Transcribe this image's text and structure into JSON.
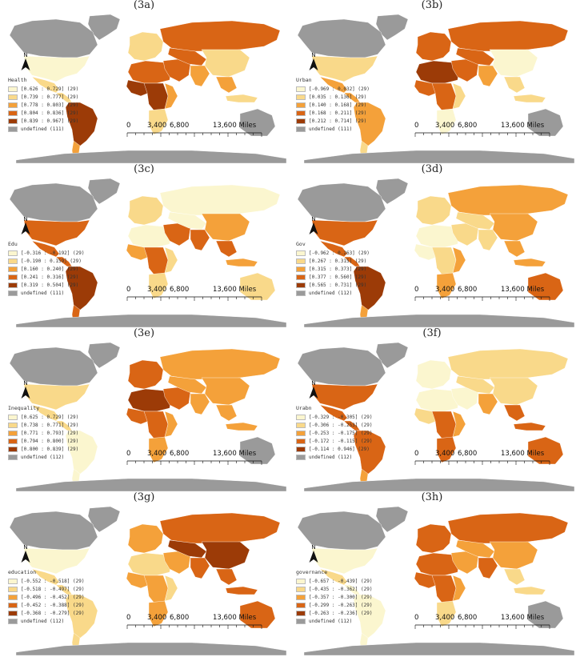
{
  "scale_labels": [
    "0",
    "3,400",
    "6,800",
    "13,600 Miles"
  ],
  "north_label": "N",
  "colors": {
    "c1": "#fbf6cf",
    "c2": "#f9d98a",
    "c3": "#f4a13a",
    "c4": "#d96515",
    "c5": "#9c3b07",
    "undefined": "#9a9a9a",
    "ocean": "#ffffff"
  },
  "panels": [
    {
      "id": "3a",
      "title": "(3a)",
      "legend_title": "Health",
      "classes": [
        "[0.626 : 0.729] (29)",
        "[0.739 : 0.777] (29)",
        "[0.778 : 0.803] (29)",
        "[0.804 : 0.836] (29)",
        "[0.839 : 0.967] (29)"
      ],
      "undefined": "undefined (111)"
    },
    {
      "id": "3b",
      "title": "(3b)",
      "legend_title": "Urban",
      "classes": [
        "[-0.969 : 0.032] (29)",
        "[0.035 : 0.136] (29)",
        "[0.140 : 0.168] (29)",
        "[0.168 : 0.211] (29)",
        "[0.212 : 0.714] (29)"
      ],
      "undefined": "undefined (111)"
    },
    {
      "id": "3c",
      "title": "(3c)",
      "legend_title": "Edu",
      "classes": [
        "[-0.316 : -0.192] (29)",
        "[-0.190 : 0.159] (29)",
        "[0.160 : 0.240] (29)",
        "[0.241 : 0.316] (29)",
        "[0.319 : 0.504] (29)"
      ],
      "undefined": "undefined (111)"
    },
    {
      "id": "3d",
      "title": "(3d)",
      "legend_title": "Gov",
      "classes": [
        "[-0.962 : 0.263] (29)",
        "[0.267 : 0.315] (29)",
        "[0.315 : 0.373] (29)",
        "[0.377 : 0.560] (29)",
        "[0.565 : 0.731] (29)"
      ],
      "undefined": "undefined (112)"
    },
    {
      "id": "3e",
      "title": "(3e)",
      "legend_title": "Inequality",
      "classes": [
        "[0.625 : 0.729] (29)",
        "[0.738 : 0.771] (29)",
        "[0.771 : 0.793] (29)",
        "[0.794 : 0.800] (29)",
        "[0.800 : 0.839] (29)"
      ],
      "undefined": "undefined (112)"
    },
    {
      "id": "3f",
      "title": "(3f)",
      "legend_title": "Urabn",
      "classes": [
        "[-0.329 : -0.305] (29)",
        "[-0.306 : -0.253] (29)",
        "[-0.253 : -0.175] (29)",
        "[-0.172 : -0.115] (29)",
        "[-0.114 : 0.946] (29)"
      ],
      "undefined": "undefined (112)"
    },
    {
      "id": "3g",
      "title": "(3g)",
      "legend_title": "education",
      "classes": [
        "[-0.552 : -0.518] (29)",
        "[-0.518 : -0.497] (29)",
        "[-0.496 : -0.452] (29)",
        "[-0.452 : -0.388] (29)",
        "[-0.368 : -0.279] (29)"
      ],
      "undefined": "undefined (112)"
    },
    {
      "id": "3h",
      "title": "(3h)",
      "legend_title": "governance",
      "classes": [
        "[-0.657 : -0.439] (29)",
        "[-0.435 : -0.362] (29)",
        "[-0.357 : -0.300] (29)",
        "[-0.299 : -0.263] (29)",
        "[-0.263 : -0.236] (29)"
      ],
      "undefined": "undefined (112)"
    }
  ],
  "fills": {
    "3a": {
      "greenland": "u",
      "canada": "u",
      "usa": "c1",
      "mexico": "c2",
      "central_america": "c2",
      "south_america": "c5",
      "south_tip": "c3",
      "europe": "c2",
      "russia": "c4",
      "north_africa": "c4",
      "west_africa": "c5",
      "central_africa": "c5",
      "east_africa": "c3",
      "south_africa": "c2",
      "middle_east": "c4",
      "central_asia": "c4",
      "india": "c3",
      "china": "c2",
      "sea": "c3",
      "indonesia": "c2",
      "australia": "u",
      "antarctica": "u"
    },
    "3b": {
      "greenland": "u",
      "canada": "u",
      "usa": "c2",
      "mexico": "c3",
      "central_america": "c3",
      "south_america": "c3",
      "south_tip": "c2",
      "europe": "c4",
      "russia": "c4",
      "north_africa": "c5",
      "west_africa": "c4",
      "central_africa": "c4",
      "east_africa": "c2",
      "south_africa": "c1",
      "middle_east": "c4",
      "central_asia": "c4",
      "india": "c3",
      "china": "c1",
      "sea": "c2",
      "indonesia": "c2",
      "australia": "u",
      "antarctica": "u"
    },
    "3c": {
      "greenland": "u",
      "canada": "u",
      "usa": "c4",
      "mexico": "c4",
      "central_america": "c4",
      "south_america": "c5",
      "south_tip": "c4",
      "europe": "c2",
      "russia": "c1",
      "north_africa": "c1",
      "west_africa": "c3",
      "central_africa": "c4",
      "east_africa": "c2",
      "south_africa": "c2",
      "middle_east": "c4",
      "central_asia": "c1",
      "india": "c4",
      "china": "c3",
      "sea": "c4",
      "indonesia": "c3",
      "australia": "c2",
      "antarctica": "u"
    },
    "3d": {
      "greenland": "u",
      "canada": "u",
      "usa": "c4",
      "mexico": "c4",
      "central_america": "c4",
      "south_america": "c5",
      "south_tip": "c3",
      "europe": "c2",
      "russia": "c3",
      "north_africa": "c1",
      "west_africa": "c1",
      "central_africa": "c2",
      "east_africa": "c3",
      "south_africa": "c3",
      "middle_east": "c2",
      "central_asia": "c2",
      "india": "c2",
      "china": "c3",
      "sea": "c3",
      "indonesia": "c3",
      "australia": "c4",
      "antarctica": "u"
    },
    "3e": {
      "greenland": "u",
      "canada": "u",
      "usa": "c2",
      "mexico": "c2",
      "central_america": "c2",
      "south_america": "c1",
      "south_tip": "c1",
      "europe": "c4",
      "russia": "c3",
      "north_africa": "c5",
      "west_africa": "c4",
      "central_africa": "c4",
      "east_africa": "c3",
      "south_africa": "c3",
      "middle_east": "c4",
      "central_asia": "c3",
      "india": "c3",
      "china": "c3",
      "sea": "c3",
      "indonesia": "c3",
      "australia": "u",
      "antarctica": "u"
    },
    "3f": {
      "greenland": "u",
      "canada": "u",
      "usa": "c4",
      "mexico": "c4",
      "central_america": "c4",
      "south_america": "c4",
      "south_tip": "c3",
      "europe": "c1",
      "russia": "c2",
      "north_africa": "c1",
      "west_africa": "c2",
      "central_africa": "c4",
      "east_africa": "c3",
      "south_africa": "c4",
      "middle_east": "c1",
      "central_asia": "c2",
      "india": "c3",
      "china": "c2",
      "sea": "c4",
      "indonesia": "c4",
      "australia": "c4",
      "antarctica": "u"
    },
    "3g": {
      "greenland": "u",
      "canada": "u",
      "usa": "c1",
      "mexico": "c2",
      "central_america": "c2",
      "south_america": "c2",
      "south_tip": "c2",
      "europe": "c3",
      "russia": "c4",
      "north_africa": "c2",
      "west_africa": "c3",
      "central_africa": "c3",
      "east_africa": "c2",
      "south_africa": "c3",
      "middle_east": "c3",
      "central_asia": "c5",
      "india": "c4",
      "china": "c5",
      "sea": "c4",
      "indonesia": "c4",
      "australia": "c4",
      "antarctica": "u"
    },
    "3h": {
      "greenland": "u",
      "canada": "u",
      "usa": "c1",
      "mexico": "c2",
      "central_america": "c1",
      "south_america": "c1",
      "south_tip": "c1",
      "europe": "c4",
      "russia": "c4",
      "north_africa": "c4",
      "west_africa": "c4",
      "central_africa": "c4",
      "east_africa": "c3",
      "south_africa": "c2",
      "middle_east": "c3",
      "central_asia": "c3",
      "india": "c4",
      "china": "c3",
      "sea": "c2",
      "indonesia": "c2",
      "australia": "u",
      "antarctica": "u"
    }
  }
}
